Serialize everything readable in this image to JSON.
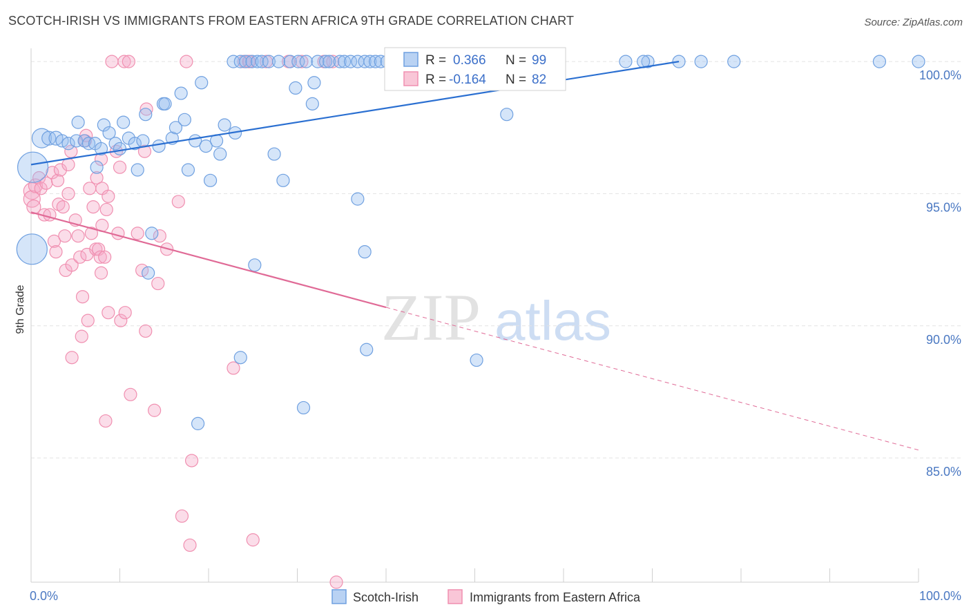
{
  "header": {
    "title": "SCOTCH-IRISH VS IMMIGRANTS FROM EASTERN AFRICA 9TH GRADE CORRELATION CHART",
    "source": "Source: ZipAtlas.com"
  },
  "watermark": {
    "zip": "ZIP",
    "atlas": "atlas"
  },
  "colors": {
    "blue": "#6fa0e0",
    "blue_line": "#2a6fd1",
    "pink": "#f08fb0",
    "pink_line": "#e06a96",
    "tick": "#4a78c2",
    "grid": "#e4e4e4"
  },
  "stats": [
    {
      "r_label": "R =",
      "r_value": "0.366",
      "n_label": "N =",
      "n_value": "99"
    },
    {
      "r_label": "R =",
      "r_value": "-0.164",
      "n_label": "N =",
      "n_value": "82"
    }
  ],
  "chart_data": {
    "type": "scatter",
    "title": "SCOTCH-IRISH VS IMMIGRANTS FROM EASTERN AFRICA 9TH GRADE CORRELATION CHART",
    "xlabel": "",
    "ylabel": "9th Grade",
    "xlim": [
      0,
      100
    ],
    "ylim": [
      80.3,
      100.5
    ],
    "x_tick_labels": [
      "0.0%",
      "100.0%"
    ],
    "y_ticks": [
      100,
      95,
      90,
      85
    ],
    "y_tick_labels": [
      "100.0%",
      "95.0%",
      "90.0%",
      "85.0%"
    ],
    "grid": true,
    "legend_position": "bottom",
    "series": [
      {
        "name": "Scotch-Irish",
        "color": "#6fa0e0",
        "trend": {
          "x": [
            0,
            73
          ],
          "y": [
            96.1,
            100.0
          ],
          "dashed_extension": false
        },
        "points": [
          [
            0.2,
            96.0,
            22
          ],
          [
            0.1,
            92.9,
            22
          ],
          [
            1.2,
            97.1,
            14
          ],
          [
            2.0,
            97.1,
            10
          ],
          [
            2.8,
            97.1,
            10
          ],
          [
            3.5,
            97.0,
            9
          ],
          [
            4.2,
            96.9,
            9
          ],
          [
            5.1,
            97.0,
            9
          ],
          [
            5.3,
            97.7,
            9
          ],
          [
            6.0,
            97.0,
            9
          ],
          [
            6.5,
            96.9,
            9
          ],
          [
            7.2,
            96.9,
            9
          ],
          [
            7.4,
            96.0,
            9
          ],
          [
            7.9,
            96.7,
            9
          ],
          [
            8.2,
            97.6,
            9
          ],
          [
            8.8,
            97.3,
            9
          ],
          [
            9.5,
            96.9,
            9
          ],
          [
            10.0,
            96.7,
            9
          ],
          [
            10.4,
            97.7,
            9
          ],
          [
            11.0,
            97.1,
            9
          ],
          [
            11.7,
            96.9,
            9
          ],
          [
            12.0,
            95.9,
            9
          ],
          [
            12.6,
            97.0,
            9
          ],
          [
            12.9,
            98.0,
            9
          ],
          [
            13.6,
            93.5,
            9
          ],
          [
            13.2,
            92.0,
            9
          ],
          [
            14.4,
            96.8,
            9
          ],
          [
            14.9,
            98.4,
            9
          ],
          [
            15.1,
            98.4,
            9
          ],
          [
            15.9,
            97.1,
            9
          ],
          [
            16.3,
            97.5,
            9
          ],
          [
            16.9,
            98.8,
            9
          ],
          [
            17.3,
            97.8,
            9
          ],
          [
            17.7,
            95.9,
            9
          ],
          [
            18.5,
            97.0,
            9
          ],
          [
            19.2,
            99.2,
            9
          ],
          [
            19.7,
            96.8,
            9
          ],
          [
            20.2,
            95.5,
            9
          ],
          [
            20.9,
            97.0,
            9
          ],
          [
            21.3,
            96.5,
            9
          ],
          [
            21.8,
            97.6,
            9
          ],
          [
            22.8,
            100.0,
            9
          ],
          [
            23.0,
            97.3,
            9
          ],
          [
            23.6,
            100.0,
            9
          ],
          [
            24.2,
            100.0,
            9
          ],
          [
            24.9,
            100.0,
            9
          ],
          [
            25.5,
            100.0,
            9
          ],
          [
            26.0,
            100.0,
            9
          ],
          [
            26.8,
            100.0,
            9
          ],
          [
            27.4,
            96.5,
            9
          ],
          [
            27.9,
            100.0,
            9
          ],
          [
            28.4,
            95.5,
            9
          ],
          [
            29.2,
            100.0,
            9
          ],
          [
            29.8,
            99.0,
            9
          ],
          [
            30.1,
            100.0,
            9
          ],
          [
            31.0,
            100.0,
            9
          ],
          [
            31.7,
            98.4,
            9
          ],
          [
            31.9,
            99.2,
            9
          ],
          [
            32.3,
            100.0,
            9
          ],
          [
            33.2,
            100.0,
            9
          ],
          [
            33.6,
            100.0,
            9
          ],
          [
            34.8,
            100.0,
            9
          ],
          [
            35.3,
            100.0,
            9
          ],
          [
            36.0,
            100.0,
            9
          ],
          [
            36.8,
            100.0,
            9
          ],
          [
            37.6,
            100.0,
            9
          ],
          [
            38.2,
            100.0,
            9
          ],
          [
            38.8,
            100.0,
            9
          ],
          [
            39.4,
            100.0,
            9
          ],
          [
            40.1,
            100.0,
            9
          ],
          [
            41.0,
            100.0,
            9
          ],
          [
            41.6,
            100.0,
            9
          ],
          [
            42.3,
            100.0,
            9
          ],
          [
            42.8,
            100.0,
            9
          ],
          [
            43.5,
            100.0,
            9
          ],
          [
            44.4,
            100.0,
            9
          ],
          [
            47.0,
            100.0,
            9
          ],
          [
            48.0,
            100.0,
            9
          ],
          [
            50.0,
            100.0,
            9
          ],
          [
            51.0,
            100.0,
            9
          ],
          [
            54.6,
            100.0,
            9
          ],
          [
            59.0,
            100.0,
            9
          ],
          [
            67.0,
            100.0,
            9
          ],
          [
            69.5,
            100.0,
            9
          ],
          [
            69.0,
            100.0,
            9
          ],
          [
            73.0,
            100.0,
            9
          ],
          [
            75.5,
            100.0,
            9
          ],
          [
            79.2,
            100.0,
            9
          ],
          [
            95.6,
            100.0,
            9
          ],
          [
            100.0,
            100.0,
            9
          ],
          [
            36.8,
            94.8,
            9
          ],
          [
            37.6,
            92.8,
            9
          ],
          [
            37.8,
            89.1,
            9
          ],
          [
            25.2,
            92.3,
            9
          ],
          [
            23.6,
            88.8,
            9
          ],
          [
            30.7,
            86.9,
            9
          ],
          [
            18.8,
            86.3,
            9
          ],
          [
            50.2,
            88.7,
            9
          ],
          [
            53.6,
            98.0,
            9
          ]
        ]
      },
      {
        "name": "Immigrants from Eastern Africa",
        "color": "#f08fb0",
        "trend": {
          "x": [
            0,
            40,
            100
          ],
          "y": [
            94.3,
            90.7,
            85.3
          ],
          "dashed_extension": true
        },
        "points": [
          [
            0.1,
            95.1,
            12
          ],
          [
            0.1,
            94.8,
            12
          ],
          [
            0.3,
            94.5,
            10
          ],
          [
            0.5,
            95.3,
            10
          ],
          [
            0.9,
            95.6,
            9
          ],
          [
            1.1,
            95.2,
            9
          ],
          [
            1.5,
            94.2,
            9
          ],
          [
            1.7,
            95.4,
            9
          ],
          [
            2.1,
            94.2,
            9
          ],
          [
            2.4,
            95.8,
            9
          ],
          [
            2.6,
            93.2,
            9
          ],
          [
            2.8,
            92.8,
            9
          ],
          [
            3.0,
            95.5,
            9
          ],
          [
            3.1,
            94.6,
            9
          ],
          [
            3.3,
            95.9,
            9
          ],
          [
            3.6,
            94.5,
            9
          ],
          [
            3.8,
            93.4,
            9
          ],
          [
            3.9,
            92.1,
            9
          ],
          [
            4.2,
            95.0,
            9
          ],
          [
            4.2,
            96.1,
            9
          ],
          [
            4.5,
            96.6,
            9
          ],
          [
            4.6,
            92.3,
            9
          ],
          [
            4.6,
            88.8,
            9
          ],
          [
            5.0,
            94.0,
            9
          ],
          [
            5.3,
            93.4,
            9
          ],
          [
            5.5,
            92.6,
            9
          ],
          [
            5.7,
            89.6,
            9
          ],
          [
            5.8,
            91.1,
            9
          ],
          [
            6.1,
            97.0,
            9
          ],
          [
            6.2,
            97.2,
            9
          ],
          [
            6.3,
            92.7,
            9
          ],
          [
            6.4,
            90.2,
            9
          ],
          [
            6.6,
            95.2,
            9
          ],
          [
            6.8,
            93.5,
            9
          ],
          [
            7.0,
            94.5,
            9
          ],
          [
            7.3,
            92.9,
            9
          ],
          [
            7.4,
            95.6,
            9
          ],
          [
            7.6,
            92.9,
            9
          ],
          [
            7.8,
            92.6,
            9
          ],
          [
            7.9,
            92.0,
            9
          ],
          [
            7.9,
            96.3,
            9
          ],
          [
            8.0,
            93.8,
            9
          ],
          [
            8.3,
            92.6,
            9
          ],
          [
            8.0,
            95.2,
            9
          ],
          [
            8.4,
            86.4,
            9
          ],
          [
            8.5,
            94.4,
            9
          ],
          [
            8.7,
            90.5,
            9
          ],
          [
            8.7,
            94.9,
            9
          ],
          [
            9.1,
            100.0,
            9
          ],
          [
            9.6,
            96.6,
            9
          ],
          [
            9.8,
            93.5,
            9
          ],
          [
            10.0,
            96.0,
            9
          ],
          [
            10.1,
            90.2,
            9
          ],
          [
            10.5,
            100.0,
            9
          ],
          [
            10.6,
            90.5,
            9
          ],
          [
            11.0,
            100.0,
            9
          ],
          [
            11.2,
            87.4,
            9
          ],
          [
            12.0,
            93.5,
            9
          ],
          [
            12.5,
            92.1,
            9
          ],
          [
            12.8,
            96.6,
            9
          ],
          [
            12.9,
            89.8,
            9
          ],
          [
            13.0,
            98.2,
            9
          ],
          [
            13.9,
            86.8,
            9
          ],
          [
            14.3,
            91.6,
            9
          ],
          [
            14.5,
            93.4,
            9
          ],
          [
            15.3,
            92.9,
            9
          ],
          [
            16.6,
            94.7,
            9
          ],
          [
            17.0,
            82.8,
            9
          ],
          [
            17.5,
            100.0,
            9
          ],
          [
            17.9,
            81.7,
            9
          ],
          [
            18.1,
            84.9,
            9
          ],
          [
            22.8,
            88.4,
            9
          ],
          [
            24.0,
            100.0,
            9
          ],
          [
            24.5,
            100.0,
            9
          ],
          [
            24.6,
            100.0,
            9
          ],
          [
            25.0,
            81.9,
            9
          ],
          [
            26.5,
            100.0,
            9
          ],
          [
            29.0,
            100.0,
            9
          ],
          [
            30.5,
            100.0,
            9
          ],
          [
            33.0,
            100.0,
            9
          ],
          [
            34.0,
            100.0,
            9
          ],
          [
            34.4,
            80.3,
            9
          ]
        ]
      }
    ]
  },
  "legend": {
    "items": [
      {
        "label": "Scotch-Irish"
      },
      {
        "label": "Immigrants from Eastern Africa"
      }
    ]
  }
}
